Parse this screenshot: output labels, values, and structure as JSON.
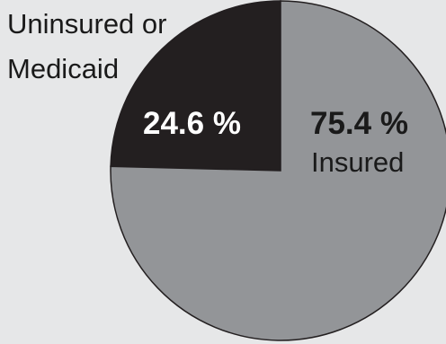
{
  "chart_data": {
    "type": "pie",
    "categories": [
      "Uninsured or Medicaid",
      "Insured"
    ],
    "values": [
      24.6,
      75.4
    ],
    "value_labels": [
      "24.6 %",
      "75.4 %"
    ],
    "outside_label_lines": [
      "Uninsured or",
      "Medicaid"
    ],
    "inside_label": "Insured",
    "colors": [
      "#231f20",
      "#939598"
    ],
    "background": "#e6e7e8",
    "edge_color": "#231f20",
    "start_angle_deg": 0,
    "direction": "clockwise"
  }
}
